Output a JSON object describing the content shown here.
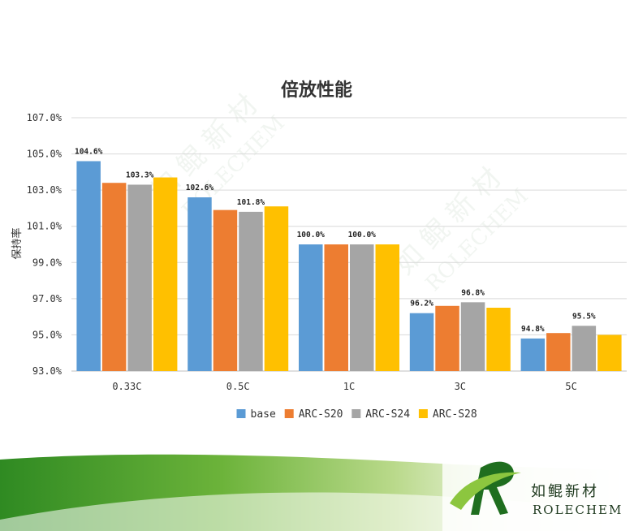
{
  "chart_data": {
    "type": "bar",
    "title": "倍放性能",
    "ylabel": "保持率",
    "xlabel": "",
    "ylim": [
      93,
      107
    ],
    "yticks": [
      "93.0%",
      "95.0%",
      "97.0%",
      "99.0%",
      "101.0%",
      "103.0%",
      "105.0%",
      "107.0%"
    ],
    "grid": true,
    "legend_position": "bottom",
    "categories": [
      "0.33C",
      "0.5C",
      "1C",
      "3C",
      "5C"
    ],
    "series": [
      {
        "name": "base",
        "color": "#5B9BD5",
        "values": [
          104.6,
          102.6,
          100.0,
          96.2,
          94.8
        ]
      },
      {
        "name": "ARC-S20",
        "color": "#ED7D31",
        "values": [
          103.4,
          101.9,
          100.0,
          96.6,
          95.1
        ]
      },
      {
        "name": "ARC-S24",
        "color": "#A5A5A5",
        "values": [
          103.3,
          101.8,
          100.0,
          96.8,
          95.5
        ]
      },
      {
        "name": "ARC-S28",
        "color": "#FFC000",
        "values": [
          103.7,
          102.1,
          100.0,
          96.5,
          95.0
        ]
      }
    ],
    "data_labels": [
      {
        "series": 0,
        "category": 0,
        "text": "104.6%"
      },
      {
        "series": 2,
        "category": 0,
        "text": "103.3%"
      },
      {
        "series": 0,
        "category": 1,
        "text": "102.6%"
      },
      {
        "series": 2,
        "category": 1,
        "text": "101.8%"
      },
      {
        "series": 0,
        "category": 2,
        "text": "100.0%"
      },
      {
        "series": 2,
        "category": 2,
        "text": "100.0%"
      },
      {
        "series": 0,
        "category": 3,
        "text": "96.2%"
      },
      {
        "series": 2,
        "category": 3,
        "text": "96.8%"
      },
      {
        "series": 0,
        "category": 4,
        "text": "94.8%"
      },
      {
        "series": 2,
        "category": 4,
        "text": "95.5%"
      }
    ]
  },
  "watermark": {
    "cn": "如 鲲 新 材",
    "en": "ROLECHEM"
  },
  "brand": {
    "cn": "如鲲新材",
    "en": "ROLECHEM",
    "colors": {
      "dark_green": "#1f6e1f",
      "light_green": "#8cc63f"
    }
  }
}
